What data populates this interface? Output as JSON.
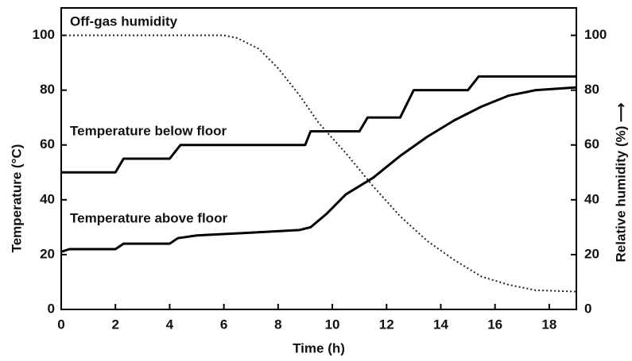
{
  "chart_data": {
    "type": "line",
    "xlabel": "Time (h)",
    "ylabel": "Temperature (°C)",
    "y2label": "Relative humidity (%) ⟶",
    "xlim": [
      0,
      19
    ],
    "xticks": [
      0,
      2,
      4,
      6,
      8,
      10,
      12,
      14,
      16,
      18
    ],
    "ylim": [
      0,
      110
    ],
    "yticks": [
      0,
      20,
      40,
      60,
      80,
      100
    ],
    "y2lim": [
      0,
      110
    ],
    "y2ticks": [
      0,
      20,
      40,
      60,
      80,
      100
    ],
    "series": [
      {
        "name": "Off-gas humidity",
        "color": "#222",
        "axis": "y2",
        "style": "dotted",
        "x": [
          0,
          6,
          6.5,
          7.3,
          8,
          8.8,
          9.5,
          10.5,
          11.5,
          12.5,
          13.5,
          14.5,
          15.5,
          16.5,
          17.5,
          19
        ],
        "values": [
          100,
          100,
          99,
          95,
          88,
          78,
          68,
          57,
          45,
          34,
          25,
          18,
          12,
          9,
          7,
          6.5
        ]
      },
      {
        "name": "Temperature below floor",
        "color": "#000",
        "style": "solid",
        "x": [
          0,
          2,
          2.3,
          4,
          4.4,
          9,
          9.2,
          11,
          11.3,
          12.5,
          13,
          15,
          15.4,
          19
        ],
        "values": [
          50,
          50,
          55,
          55,
          60,
          60,
          65,
          65,
          70,
          70,
          80,
          80,
          85,
          85
        ]
      },
      {
        "name": "Temperature above floor",
        "color": "#000",
        "style": "solid",
        "x": [
          0,
          0.3,
          2,
          2.3,
          4,
          4.3,
          5,
          7,
          8.8,
          9.2,
          9.8,
          10.5,
          11.5,
          12.5,
          13.5,
          14.5,
          15.5,
          16.5,
          17.5,
          19
        ],
        "values": [
          21,
          22,
          22,
          24,
          24,
          26,
          27,
          28,
          29,
          30,
          35,
          42,
          48,
          56,
          63,
          69,
          74,
          78,
          80,
          81
        ]
      }
    ]
  }
}
